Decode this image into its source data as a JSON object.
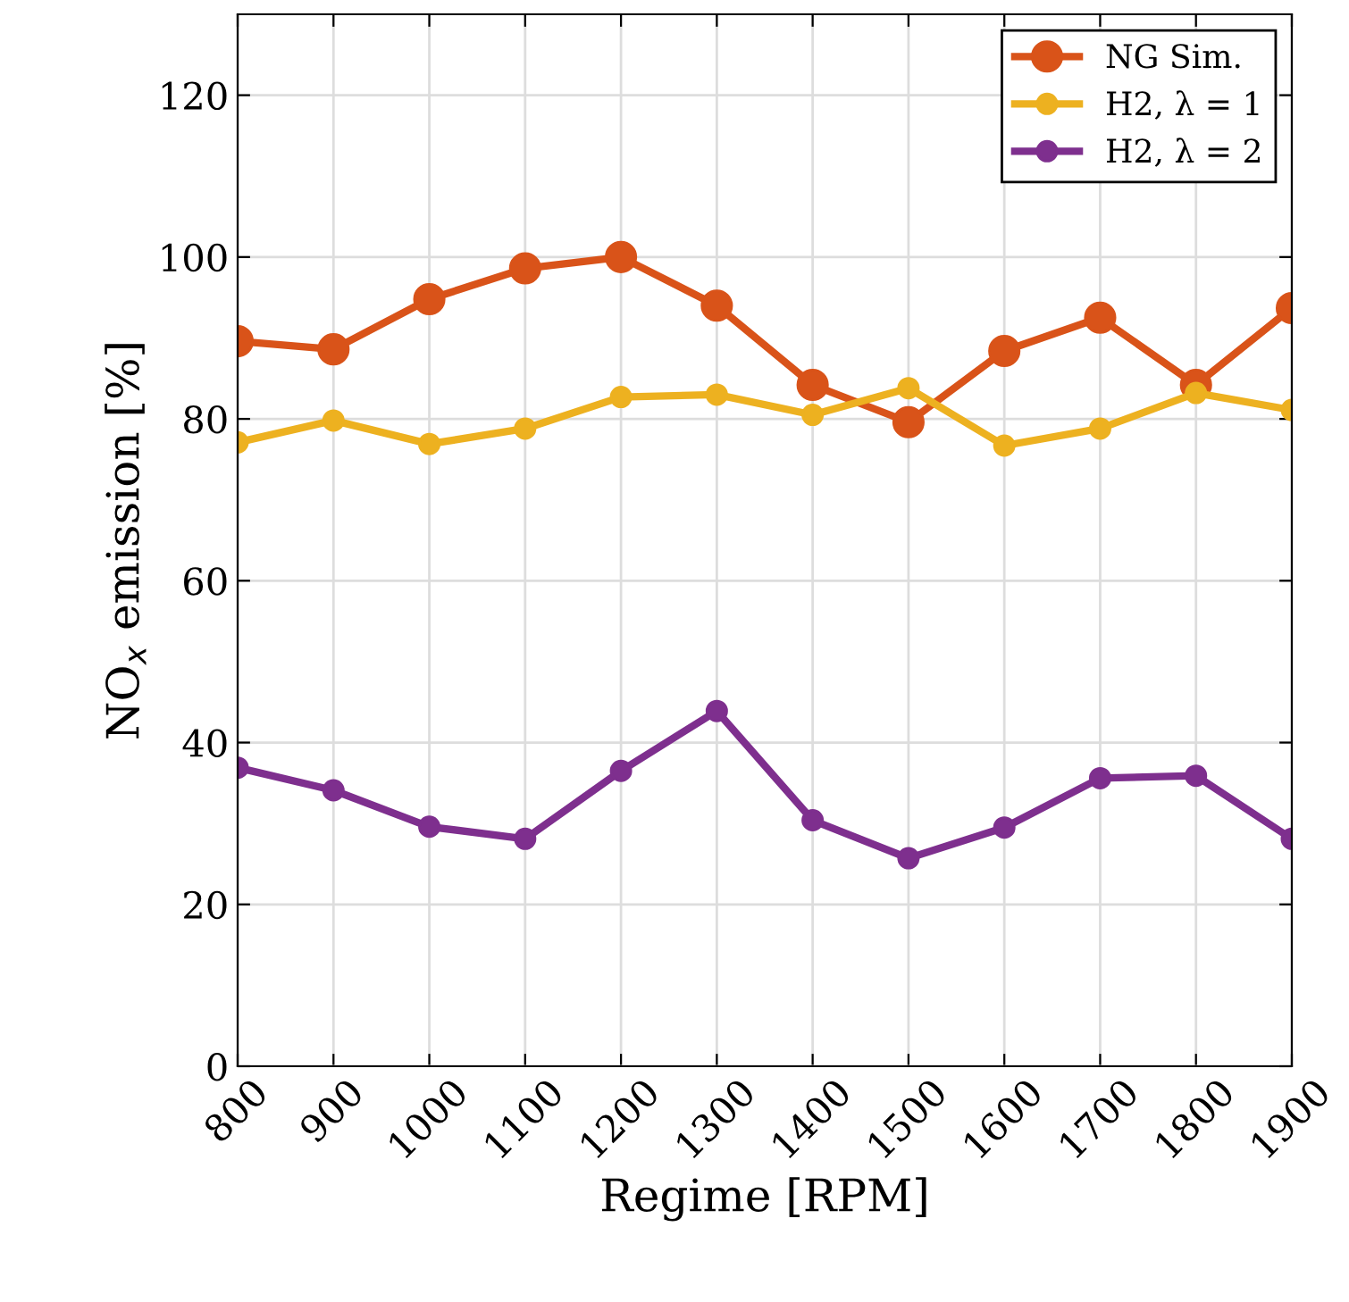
{
  "chart_data": {
    "type": "line",
    "xlabel": "Regime [RPM]",
    "ylabel": "NO$_{x}$ emission [%]",
    "x": [
      800,
      900,
      1000,
      1100,
      1200,
      1300,
      1400,
      1500,
      1600,
      1700,
      1800,
      1900
    ],
    "series": [
      {
        "name": "NG Sim.",
        "color": "#d95319",
        "values": [
          89.6,
          88.6,
          94.8,
          98.6,
          100,
          94,
          84.2,
          79.6,
          88.4,
          92.5,
          84.2,
          93.7
        ]
      },
      {
        "name": "H2, λ = 1",
        "color": "#edb120",
        "values": [
          77.1,
          79.8,
          76.9,
          78.8,
          82.7,
          83.0,
          80.5,
          83.8,
          76.7,
          78.8,
          83.2,
          81.1
        ]
      },
      {
        "name": "H2, λ = 2",
        "color": "#7e2f8e",
        "values": [
          36.9,
          34.1,
          29.6,
          28.1,
          36.5,
          43.9,
          30.4,
          25.7,
          29.5,
          35.6,
          35.9,
          28.1
        ]
      }
    ],
    "xlim": [
      800,
      1900
    ],
    "xticks": [
      800,
      900,
      1000,
      1100,
      1200,
      1300,
      1400,
      1500,
      1600,
      1700,
      1800,
      1900
    ],
    "ylim": [
      0,
      130
    ],
    "yticks": [
      0,
      20,
      40,
      60,
      80,
      100,
      120
    ],
    "grid": true,
    "legend": "top right",
    "marker": "circle",
    "line_style": "solid"
  }
}
